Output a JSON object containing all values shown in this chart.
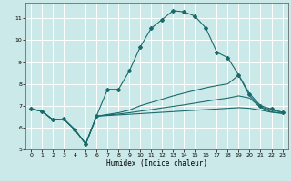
{
  "title": "",
  "xlabel": "Humidex (Indice chaleur)",
  "ylabel": "",
  "bg_color": "#cce9ea",
  "grid_color": "#ffffff",
  "line_color": "#1a6b6b",
  "xlim": [
    -0.5,
    23.5
  ],
  "ylim": [
    5.0,
    11.7
  ],
  "xticks": [
    0,
    1,
    2,
    3,
    4,
    5,
    6,
    7,
    8,
    9,
    10,
    11,
    12,
    13,
    14,
    15,
    16,
    17,
    18,
    19,
    20,
    21,
    22,
    23
  ],
  "yticks": [
    5,
    6,
    7,
    8,
    9,
    10,
    11
  ],
  "lines": [
    {
      "x": [
        0,
        1,
        2,
        3,
        4,
        5,
        6,
        7,
        8,
        9,
        10,
        11,
        12,
        13,
        14,
        15,
        16,
        17,
        18,
        19,
        20,
        21,
        22,
        23
      ],
      "y": [
        6.85,
        6.75,
        6.35,
        6.4,
        5.9,
        5.25,
        6.55,
        7.75,
        7.75,
        8.6,
        9.7,
        10.55,
        10.95,
        11.35,
        11.3,
        11.1,
        10.55,
        9.45,
        9.2,
        8.4,
        7.55,
        7.0,
        6.85,
        6.7
      ],
      "marker": true
    },
    {
      "x": [
        0,
        1,
        2,
        3,
        4,
        5,
        6,
        7,
        8,
        9,
        10,
        11,
        12,
        13,
        14,
        15,
        16,
        17,
        18,
        19,
        20,
        21,
        22,
        23
      ],
      "y": [
        6.85,
        6.75,
        6.35,
        6.38,
        5.9,
        5.25,
        6.52,
        6.6,
        6.68,
        6.8,
        7.0,
        7.15,
        7.3,
        7.45,
        7.58,
        7.7,
        7.82,
        7.92,
        8.0,
        8.4,
        7.45,
        6.95,
        6.8,
        6.7
      ],
      "marker": false
    },
    {
      "x": [
        0,
        1,
        2,
        3,
        4,
        5,
        6,
        7,
        8,
        9,
        10,
        11,
        12,
        13,
        14,
        15,
        16,
        17,
        18,
        19,
        20,
        21,
        22,
        23
      ],
      "y": [
        6.85,
        6.75,
        6.35,
        6.38,
        5.9,
        5.25,
        6.52,
        6.58,
        6.62,
        6.68,
        6.75,
        6.82,
        6.9,
        6.97,
        7.04,
        7.12,
        7.2,
        7.28,
        7.35,
        7.45,
        7.35,
        6.92,
        6.72,
        6.65
      ],
      "marker": false
    },
    {
      "x": [
        0,
        1,
        2,
        3,
        4,
        5,
        6,
        7,
        8,
        9,
        10,
        11,
        12,
        13,
        14,
        15,
        16,
        17,
        18,
        19,
        20,
        21,
        22,
        23
      ],
      "y": [
        6.85,
        6.75,
        6.35,
        6.38,
        5.9,
        5.25,
        6.52,
        6.55,
        6.58,
        6.61,
        6.64,
        6.67,
        6.7,
        6.73,
        6.76,
        6.79,
        6.82,
        6.85,
        6.88,
        6.91,
        6.88,
        6.8,
        6.7,
        6.65
      ],
      "marker": false
    }
  ]
}
